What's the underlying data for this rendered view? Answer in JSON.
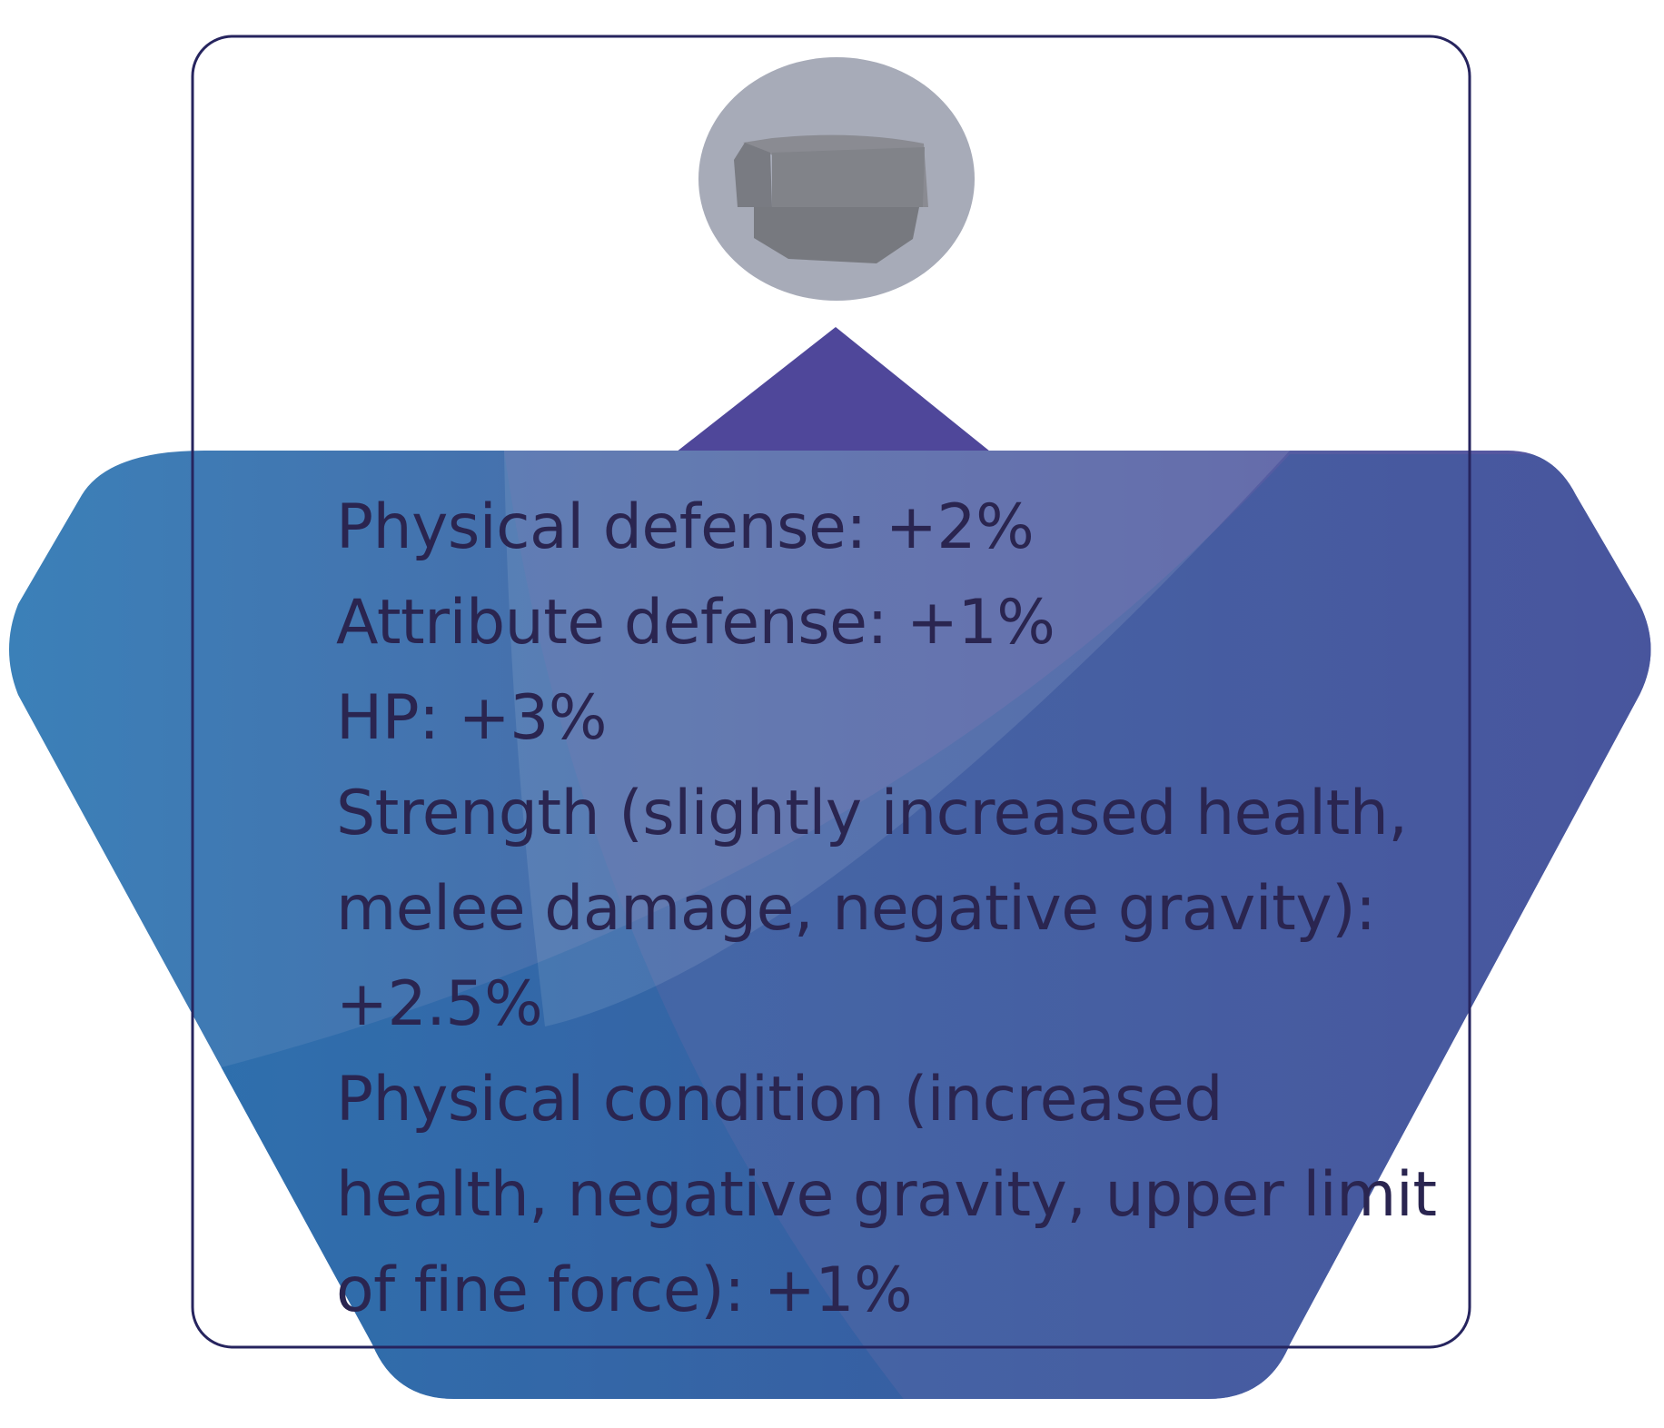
{
  "colors": {
    "panel_border": "#26245e",
    "text": "#2a2550",
    "gradient_left": "#3b80b8",
    "gradient_right": "#4e4a9a",
    "pointer": "#4f479a",
    "icon_bg": "#a7abb8",
    "icon_shape": "#7e8086"
  },
  "item": {
    "icon": "stone-shard-icon"
  },
  "stats": [
    "Physical defense: +2%",
    "Attribute defense: +1%",
    "HP: +3%",
    "Strength (slightly increased health, melee damage, negative gravity): +2.5%",
    "Physical condition (increased health, negative gravity, upper limit of fine force): +1%"
  ]
}
